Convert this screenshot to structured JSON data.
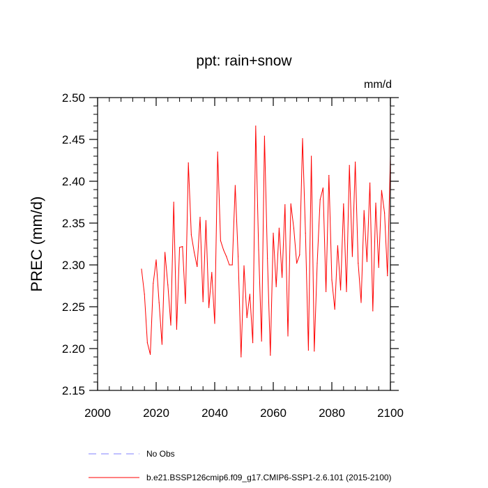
{
  "chart_data": {
    "type": "line",
    "title": "ppt: rain+snow",
    "units": "mm/d",
    "ylabel": "PREC  (mm/d)",
    "xlabel": "",
    "xlim": [
      2000,
      2100
    ],
    "ylim": [
      2.15,
      2.5
    ],
    "xticks": [
      2000,
      2020,
      2040,
      2060,
      2080,
      2100
    ],
    "yticks": [
      2.15,
      2.2,
      2.25,
      2.3,
      2.35,
      2.4,
      2.45,
      2.5
    ],
    "xtick_labels": [
      "2000",
      "2020",
      "2040",
      "2060",
      "2080",
      "2100"
    ],
    "ytick_labels": [
      "2.15",
      "2.20",
      "2.25",
      "2.30",
      "2.35",
      "2.40",
      "2.45",
      "2.50"
    ],
    "series": [
      {
        "name": "b.e21.BSSP126cmip6.f09_g17.CMIP6-SSP1-2.6.101 (2015-2100)",
        "color": "#ff0000",
        "style": "solid",
        "x": [
          2015,
          2016,
          2017,
          2018,
          2019,
          2020,
          2021,
          2022,
          2023,
          2024,
          2025,
          2026,
          2027,
          2028,
          2029,
          2030,
          2031,
          2032,
          2033,
          2034,
          2035,
          2036,
          2037,
          2038,
          2039,
          2040,
          2041,
          2042,
          2043,
          2044,
          2045,
          2046,
          2047,
          2048,
          2049,
          2050,
          2051,
          2052,
          2053,
          2054,
          2055,
          2056,
          2057,
          2058,
          2059,
          2060,
          2061,
          2062,
          2063,
          2064,
          2065,
          2066,
          2067,
          2068,
          2069,
          2070,
          2071,
          2072,
          2073,
          2074,
          2075,
          2076,
          2077,
          2078,
          2079,
          2080,
          2081,
          2082,
          2083,
          2084,
          2085,
          2086,
          2087,
          2088,
          2089,
          2090,
          2091,
          2092,
          2093,
          2094,
          2095,
          2096,
          2097,
          2098,
          2099,
          2100
        ],
        "values": [
          2.295,
          2.265,
          2.207,
          2.193,
          2.278,
          2.306,
          2.255,
          2.205,
          2.315,
          2.276,
          2.228,
          2.375,
          2.223,
          2.321,
          2.322,
          2.254,
          2.422,
          2.336,
          2.315,
          2.298,
          2.357,
          2.256,
          2.353,
          2.249,
          2.291,
          2.23,
          2.435,
          2.329,
          2.318,
          2.31,
          2.3,
          2.3,
          2.395,
          2.31,
          2.19,
          2.299,
          2.237,
          2.265,
          2.207,
          2.466,
          2.318,
          2.209,
          2.454,
          2.308,
          2.192,
          2.338,
          2.274,
          2.344,
          2.285,
          2.372,
          2.215,
          2.373,
          2.344,
          2.302,
          2.312,
          2.451,
          2.338,
          2.198,
          2.43,
          2.197,
          2.302,
          2.378,
          2.392,
          2.268,
          2.407,
          2.282,
          2.247,
          2.323,
          2.27,
          2.373,
          2.268,
          2.419,
          2.31,
          2.423,
          2.302,
          2.255,
          2.365,
          2.304,
          2.398,
          2.245,
          2.374,
          2.297,
          2.389,
          2.362,
          2.287,
          2.43
        ]
      },
      {
        "name": "No Obs",
        "color": "#8080ff",
        "style": "dashed",
        "x": [],
        "values": []
      }
    ],
    "legend": "bottom"
  }
}
